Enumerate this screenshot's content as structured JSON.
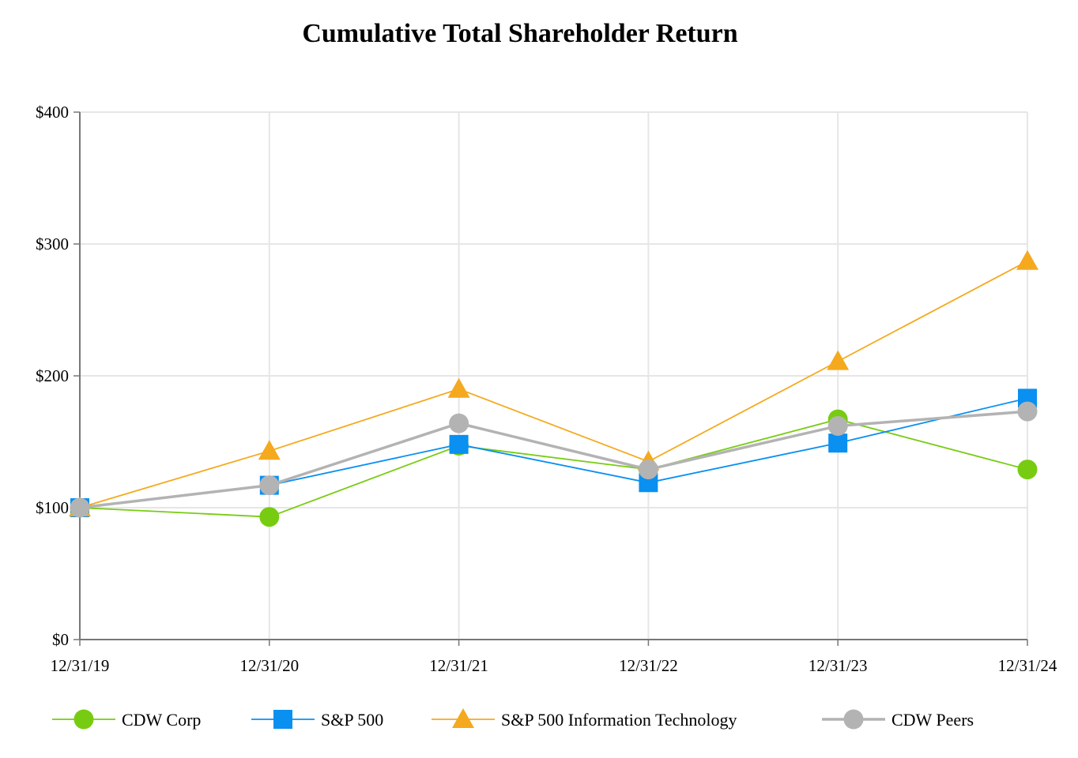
{
  "chart_data": {
    "type": "line",
    "title": "Cumulative Total Shareholder Return",
    "xlabel": "",
    "ylabel": "",
    "categories": [
      "12/31/19",
      "12/31/20",
      "12/31/21",
      "12/31/22",
      "12/31/23",
      "12/31/24"
    ],
    "ylim": [
      0,
      400
    ],
    "yticks": [
      0,
      100,
      200,
      300,
      400
    ],
    "ytick_labels": [
      "$0",
      "$100",
      "$200",
      "$300",
      "$400"
    ],
    "grid": true,
    "legend_position": "bottom",
    "series": [
      {
        "name": "CDW Corp",
        "color": "#77cc11",
        "marker": "circle",
        "values": [
          100,
          93,
          147,
          129,
          167,
          129
        ]
      },
      {
        "name": "S&P 500",
        "color": "#0990f0",
        "marker": "square",
        "values": [
          100,
          117,
          148,
          119,
          149,
          183
        ]
      },
      {
        "name": "S&P 500 Information Technology",
        "color": "#f5a91e",
        "marker": "triangle",
        "values": [
          100,
          143,
          190,
          135,
          211,
          287
        ]
      },
      {
        "name": "CDW Peers",
        "color": "#b3b3b3",
        "marker": "circle",
        "values": [
          100,
          117,
          164,
          129,
          162,
          173
        ]
      }
    ]
  }
}
